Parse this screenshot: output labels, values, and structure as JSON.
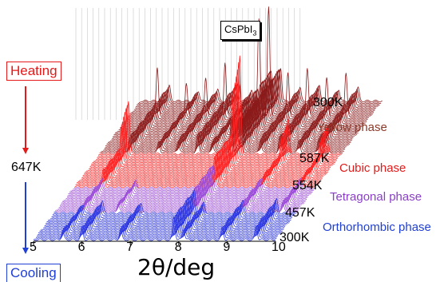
{
  "chart_data": {
    "type": "line",
    "subtype": "waterfall-xrd",
    "compound": {
      "base": "CsPbI",
      "subscript": "3"
    },
    "xlabel_symbol": "2θ",
    "xlabel_unit": "/deg",
    "xlim": [
      5,
      10
    ],
    "x_ticks": [
      5,
      6,
      7,
      8,
      9,
      10
    ],
    "process_labels": {
      "heating": "Heating",
      "cooling": "Cooling",
      "turn_temperature": "647K"
    },
    "temperature_labels": [
      "300K",
      "587K",
      "554K",
      "457K",
      "300K"
    ],
    "phase_labels": [
      {
        "name": "Yellow phase",
        "color": "#8b3a2a"
      },
      {
        "name": "Cubic phase",
        "color": "#e41a1a"
      },
      {
        "name": "Tetragonal phase",
        "color": "#8a3fc8"
      },
      {
        "name": "Orthorhombic phase",
        "color": "#1f3fd6"
      }
    ],
    "series": [
      {
        "name": "Yellow phase",
        "color": "#8b1a1a",
        "peaks_2theta": [
          5.6,
          6.2,
          6.6,
          7.0,
          7.3,
          7.7,
          7.9,
          8.3,
          8.7,
          9.1,
          9.5
        ],
        "peak_heights": [
          0.45,
          0.3,
          0.35,
          0.5,
          0.3,
          0.9,
          1.0,
          0.4,
          0.45,
          0.35,
          0.4
        ]
      },
      {
        "name": "Cubic phase",
        "color": "#ff2020",
        "peaks_2theta": [
          5.6,
          7.9,
          8.9,
          9.7
        ],
        "peak_heights": [
          0.55,
          1.0,
          0.35,
          0.3
        ]
      },
      {
        "name": "Tetragonal phase",
        "color": "#9a4ad8",
        "peaks_2theta": [
          5.6,
          6.3,
          7.9,
          8.9,
          9.7
        ],
        "peak_heights": [
          0.3,
          0.25,
          0.8,
          0.35,
          0.3
        ]
      },
      {
        "name": "Orthorhombic phase",
        "color": "#2a34e0",
        "peaks_2theta": [
          5.6,
          6.0,
          6.8,
          7.9,
          8.1,
          8.9,
          9.6
        ],
        "peak_heights": [
          0.3,
          0.4,
          0.35,
          0.75,
          0.35,
          0.4,
          0.45
        ]
      }
    ]
  }
}
